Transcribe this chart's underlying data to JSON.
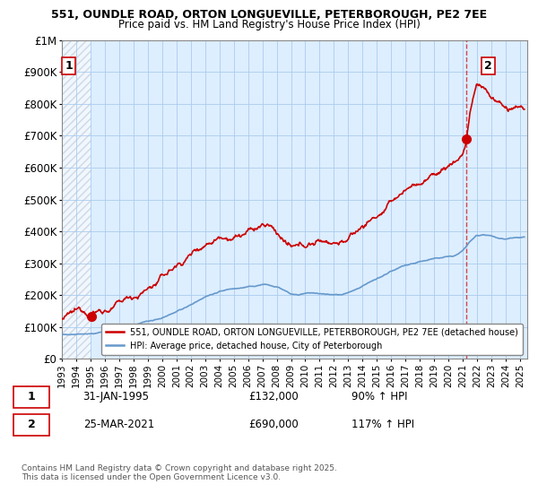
{
  "title_line1": "551, OUNDLE ROAD, ORTON LONGUEVILLE, PETERBOROUGH, PE2 7EE",
  "title_line2": "Price paid vs. HM Land Registry's House Price Index (HPI)",
  "ylabel_ticks": [
    "£0",
    "£100K",
    "£200K",
    "£300K",
    "£400K",
    "£500K",
    "£600K",
    "£700K",
    "£800K",
    "£900K",
    "£1M"
  ],
  "ylabel_values": [
    0,
    100000,
    200000,
    300000,
    400000,
    500000,
    600000,
    700000,
    800000,
    900000,
    1000000
  ],
  "xlim": [
    1993,
    2025.5
  ],
  "ylim": [
    0,
    1000000
  ],
  "sale1_x": 1995.08,
  "sale1_y": 132000,
  "sale2_x": 2021.23,
  "sale2_y": 690000,
  "legend_line1": "551, OUNDLE ROAD, ORTON LONGUEVILLE, PETERBOROUGH, PE2 7EE (detached house)",
  "legend_line2": "HPI: Average price, detached house, City of Peterborough",
  "footer": "Contains HM Land Registry data © Crown copyright and database right 2025.\nThis data is licensed under the Open Government Licence v3.0.",
  "red_color": "#cc0000",
  "blue_color": "#6699cc",
  "grid_color": "#aaccee",
  "bg_color": "#ddeeff"
}
